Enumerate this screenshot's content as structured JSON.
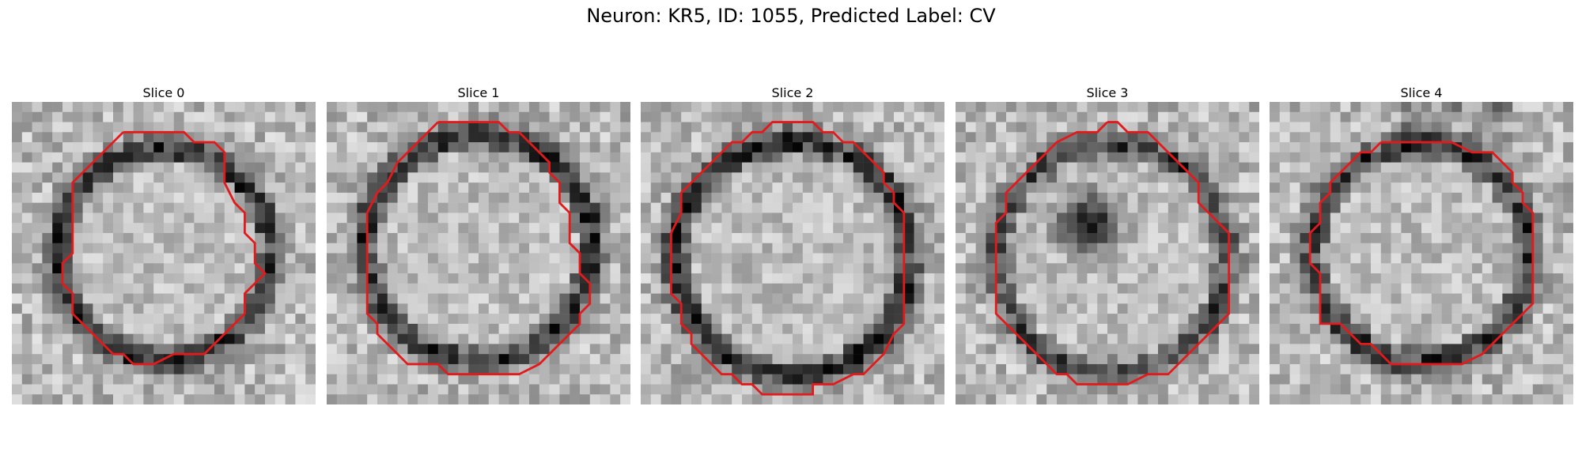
{
  "figure": {
    "title": "Neuron: KR5, ID: 1055, Predicted Label: CV",
    "outline_color": "#e31a1c"
  },
  "panels": [
    {
      "title": "Slice 0",
      "shape": "ellipse-tilted",
      "dark_blob": false
    },
    {
      "title": "Slice 1",
      "shape": "round",
      "dark_blob": false
    },
    {
      "title": "Slice 2",
      "shape": "round-large",
      "dark_blob": false
    },
    {
      "title": "Slice 3",
      "shape": "octagon",
      "dark_blob": true
    },
    {
      "title": "Slice 4",
      "shape": "round-top-dark",
      "dark_blob": false
    }
  ]
}
